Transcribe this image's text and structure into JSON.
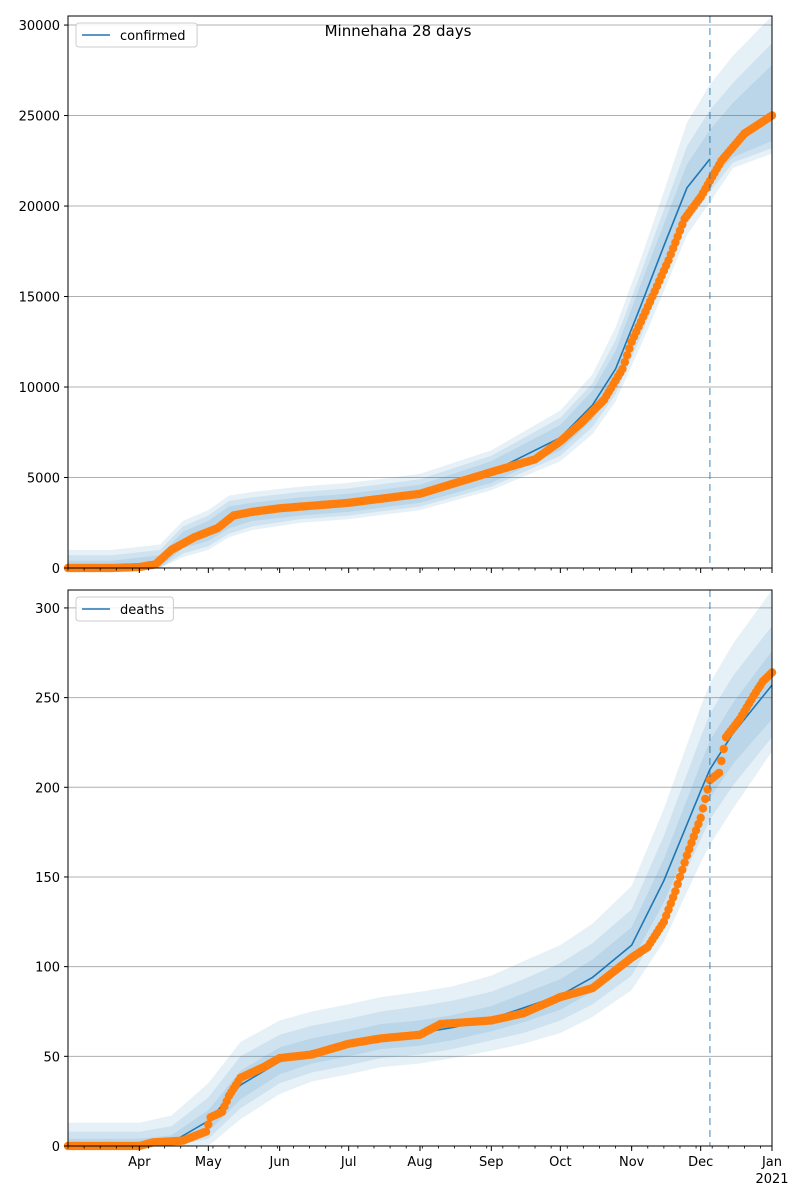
{
  "title": "Minnehaha 28 days",
  "colors": {
    "model": "#1f77b4",
    "observed": "#ff7f0e",
    "band": "#1f77b4",
    "grid": "#b0b0b0"
  },
  "x_axis": {
    "type": "date",
    "range": [
      "2020-03-01",
      "2021-01-01"
    ],
    "month_ticks": [
      {
        "date": "2020-04-01",
        "label": "Apr"
      },
      {
        "date": "2020-05-01",
        "label": "May"
      },
      {
        "date": "2020-06-01",
        "label": "Jun"
      },
      {
        "date": "2020-07-01",
        "label": "Jul"
      },
      {
        "date": "2020-08-01",
        "label": "Aug"
      },
      {
        "date": "2020-09-01",
        "label": "Sep"
      },
      {
        "date": "2020-10-01",
        "label": "Oct"
      },
      {
        "date": "2020-11-01",
        "label": "Nov"
      },
      {
        "date": "2020-12-01",
        "label": "Dec"
      },
      {
        "date": "2021-01-01",
        "label": "Jan"
      }
    ],
    "year_label": {
      "date": "2021-01-01",
      "label": "2021"
    }
  },
  "chart_data": [
    {
      "type": "line",
      "legend": "confirmed",
      "legend_position": "top-left",
      "grid": "y",
      "ylim": [
        0,
        30500
      ],
      "yticks": [
        0,
        5000,
        10000,
        15000,
        20000,
        25000,
        30000
      ],
      "forecast_start": "2020-12-05",
      "model": {
        "x": [
          "2020-03-01",
          "2020-03-20",
          "2020-04-10",
          "2020-04-20",
          "2020-05-01",
          "2020-05-10",
          "2020-05-20",
          "2020-06-10",
          "2020-07-01",
          "2020-08-01",
          "2020-09-01",
          "2020-10-01",
          "2020-10-15",
          "2020-10-25",
          "2020-11-05",
          "2020-11-15",
          "2020-11-25",
          "2020-12-05",
          "2020-12-15",
          "2021-01-01"
        ],
        "y": [
          0,
          0,
          300,
          1500,
          2000,
          2800,
          3100,
          3400,
          3600,
          4100,
          5300,
          7200,
          9000,
          11000,
          14500,
          17800,
          21000,
          22600,
          23500,
          25000
        ]
      },
      "bands": [
        {
          "level": 1,
          "lower": [
            0,
            0,
            50,
            1100,
            1500,
            2200,
            2600,
            2900,
            3100,
            3600,
            4700,
            6500,
            8200,
            10000,
            13300,
            16600,
            19700,
            21400,
            22700,
            23600
          ],
          "upper": [
            400,
            400,
            700,
            2000,
            2600,
            3400,
            3600,
            3900,
            4100,
            4600,
            5900,
            7900,
            9800,
            12000,
            15700,
            19000,
            22300,
            24200,
            25700,
            27800
          ]
        },
        {
          "level": 2,
          "lower": [
            0,
            0,
            0,
            800,
            1200,
            1900,
            2300,
            2700,
            2900,
            3400,
            4500,
            6200,
            7800,
            9600,
            12800,
            16000,
            19000,
            20800,
            22400,
            23200
          ],
          "upper": [
            700,
            700,
            1000,
            2300,
            2900,
            3700,
            3900,
            4200,
            4400,
            4900,
            6200,
            8300,
            10200,
            12600,
            16300,
            19800,
            23300,
            25300,
            26800,
            29000
          ]
        },
        {
          "level": 3,
          "lower": [
            0,
            0,
            0,
            600,
            1000,
            1700,
            2100,
            2500,
            2700,
            3200,
            4300,
            5900,
            7400,
            9200,
            12300,
            15300,
            18400,
            20200,
            22100,
            22900
          ],
          "upper": [
            1000,
            1000,
            1300,
            2600,
            3200,
            4000,
            4200,
            4500,
            4700,
            5200,
            6500,
            8700,
            10700,
            13300,
            17100,
            20800,
            24600,
            26700,
            28300,
            30500
          ]
        }
      ],
      "observed": {
        "x": [
          "2020-03-01",
          "2020-03-20",
          "2020-04-01",
          "2020-04-08",
          "2020-04-15",
          "2020-04-25",
          "2020-05-05",
          "2020-05-08",
          "2020-05-12",
          "2020-05-20",
          "2020-06-01",
          "2020-07-01",
          "2020-08-01",
          "2020-09-01",
          "2020-09-20",
          "2020-10-01",
          "2020-10-10",
          "2020-10-20",
          "2020-10-28",
          "2020-11-01",
          "2020-11-10",
          "2020-11-17",
          "2020-11-24",
          "2020-12-01",
          "2020-12-10",
          "2020-12-20",
          "2021-01-01"
        ],
        "y": [
          0,
          0,
          50,
          200,
          1000,
          1700,
          2200,
          2500,
          2900,
          3100,
          3300,
          3600,
          4100,
          5300,
          6000,
          7000,
          8000,
          9300,
          11000,
          12500,
          15000,
          17000,
          19300,
          20500,
          22500,
          24000,
          25000
        ]
      }
    },
    {
      "type": "line",
      "legend": "deaths",
      "legend_position": "top-left",
      "grid": "y",
      "ylim": [
        0,
        310
      ],
      "yticks": [
        0,
        50,
        100,
        150,
        200,
        250,
        300
      ],
      "forecast_start": "2020-12-05",
      "model": {
        "x": [
          "2020-03-01",
          "2020-04-01",
          "2020-04-15",
          "2020-05-01",
          "2020-05-15",
          "2020-06-01",
          "2020-06-15",
          "2020-07-01",
          "2020-07-15",
          "2020-08-01",
          "2020-08-15",
          "2020-09-01",
          "2020-09-15",
          "2020-10-01",
          "2020-10-15",
          "2020-11-01",
          "2020-11-15",
          "2020-12-01",
          "2020-12-05",
          "2020-12-15",
          "2021-01-01"
        ],
        "y": [
          0,
          0,
          2,
          14,
          34,
          47,
          53,
          57,
          61,
          63,
          66,
          71,
          77,
          84,
          94,
          112,
          148,
          198,
          210,
          230,
          257
        ]
      },
      "bands": [
        {
          "level": 1,
          "lower": [
            0,
            0,
            0,
            8,
            26,
            40,
            46,
            50,
            54,
            56,
            59,
            64,
            69,
            76,
            86,
            103,
            136,
            183,
            194,
            213,
            238
          ],
          "upper": [
            4,
            4,
            6,
            20,
            42,
            55,
            60,
            64,
            68,
            70,
            73,
            78,
            85,
            93,
            104,
            122,
            160,
            213,
            226,
            247,
            276
          ]
        },
        {
          "level": 2,
          "lower": [
            0,
            0,
            0,
            4,
            21,
            35,
            41,
            45,
            49,
            51,
            54,
            59,
            63,
            70,
            79,
            95,
            126,
            171,
            182,
            201,
            228
          ],
          "upper": [
            8,
            8,
            11,
            27,
            50,
            62,
            67,
            71,
            75,
            78,
            81,
            86,
            93,
            102,
            113,
            132,
            173,
            228,
            241,
            262,
            290
          ]
        },
        {
          "level": 3,
          "lower": [
            0,
            0,
            0,
            0,
            15,
            29,
            36,
            40,
            44,
            46,
            49,
            53,
            57,
            63,
            72,
            87,
            114,
            158,
            168,
            188,
            220
          ],
          "upper": [
            13,
            13,
            17,
            35,
            58,
            70,
            75,
            79,
            83,
            86,
            89,
            95,
            103,
            112,
            124,
            145,
            188,
            245,
            258,
            280,
            310
          ]
        }
      ],
      "observed": {
        "x": [
          "2020-03-01",
          "2020-04-01",
          "2020-04-07",
          "2020-04-20",
          "2020-04-30",
          "2020-05-02",
          "2020-05-07",
          "2020-05-10",
          "2020-05-15",
          "2020-05-25",
          "2020-06-01",
          "2020-06-15",
          "2020-07-01",
          "2020-07-15",
          "2020-08-01",
          "2020-08-10",
          "2020-09-01",
          "2020-09-15",
          "2020-10-01",
          "2020-10-15",
          "2020-10-25",
          "2020-11-01",
          "2020-11-08",
          "2020-11-15",
          "2020-11-20",
          "2020-11-25",
          "2020-12-01",
          "2020-12-05",
          "2020-12-09",
          "2020-12-12",
          "2020-12-18",
          "2020-12-24",
          "2020-12-28",
          "2021-01-01"
        ],
        "y": [
          0,
          0,
          2,
          3,
          8,
          16,
          19,
          28,
          38,
          44,
          49,
          51,
          57,
          60,
          62,
          68,
          70,
          74,
          83,
          88,
          98,
          105,
          111,
          125,
          142,
          162,
          183,
          204,
          208,
          228,
          238,
          251,
          259,
          264
        ]
      }
    }
  ]
}
